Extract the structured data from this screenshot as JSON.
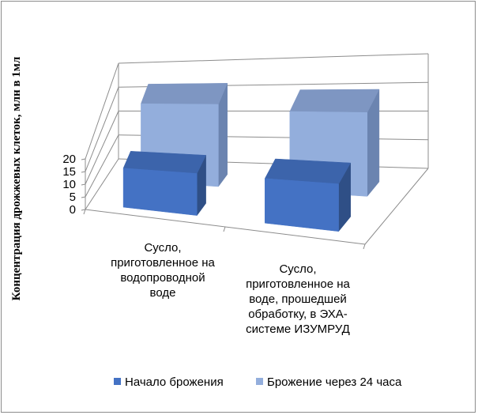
{
  "chart_data": {
    "type": "bar",
    "title": "",
    "xlabel": "",
    "ylabel": "Концентрация дрожжевых клеток, млн в 1мл",
    "ylim": [
      0,
      20
    ],
    "yticks": [
      0,
      5,
      10,
      15,
      20
    ],
    "categories": [
      [
        "Сусло,",
        "приготовленное на",
        "водопроводной",
        "воде"
      ],
      [
        "Сусло,",
        "приготовленное на",
        "воде, прошедшей",
        "обработку, в ЭХА-",
        "системе ИЗУМРУД"
      ]
    ],
    "series": [
      {
        "name": "Начало брожения",
        "values": [
          13.5,
          13.5
        ]
      },
      {
        "name": "Брожение через 24 часа",
        "values": [
          19.5,
          18
        ]
      }
    ],
    "grid": true,
    "legend_position": "bottom",
    "style": "3d-clustered-column"
  },
  "colors": {
    "series1_front": "#4472c4",
    "series1_side": "#2f4f86",
    "series1_top": "#3c64ab",
    "series2_front": "#93aedc",
    "series2_side": "#6b84b0",
    "series2_top": "#7e96c2",
    "grid": "#8c8c8c",
    "axis": "#8c8c8c"
  }
}
